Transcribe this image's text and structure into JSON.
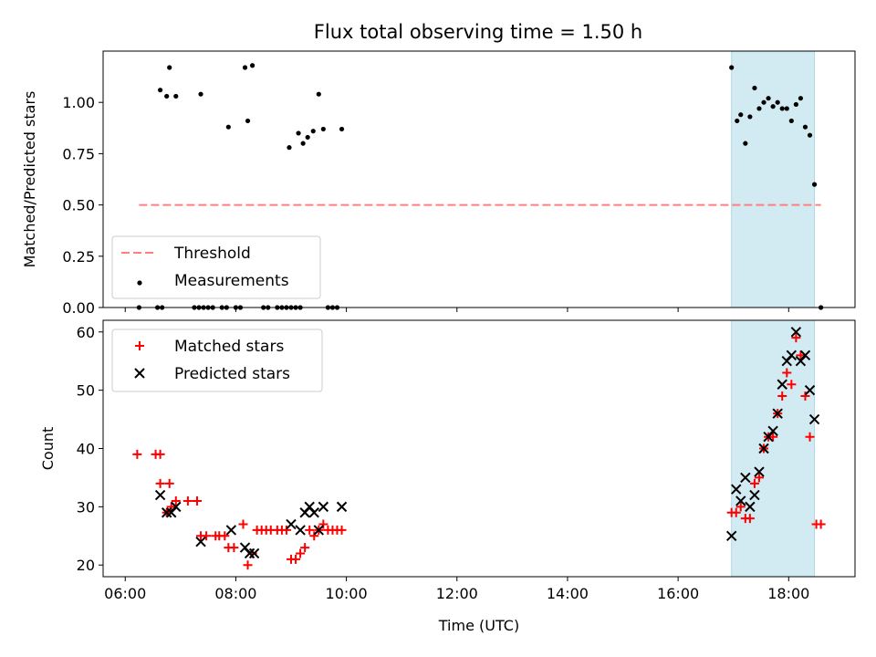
{
  "chart_data": [
    {
      "type": "scatter",
      "title": "Flux total observing time = 1.50 h",
      "xlabel": "",
      "ylabel": "Matched/Predicted stars",
      "ylim": [
        0,
        1.25
      ],
      "xlim_hours": [
        5.6,
        19.2
      ],
      "yticks": [
        "0.00",
        "0.25",
        "0.50",
        "0.75",
        "1.00"
      ],
      "shaded_interval": [
        "16:58",
        "18:28"
      ],
      "shade_color": "#add8e6",
      "legend": {
        "placement": "lower-left",
        "entries": [
          "Threshold",
          "Measurements"
        ]
      },
      "threshold": {
        "name": "Threshold",
        "value": 0.5,
        "x": [
          "06:15",
          "18:35"
        ],
        "color": "#ff7f7f",
        "style": "dashed"
      },
      "series": [
        {
          "name": "Measurements",
          "color": "#000000",
          "marker": "dot",
          "points": [
            [
              "06:15",
              0.0
            ],
            [
              "06:35",
              0.0
            ],
            [
              "06:40",
              0.0
            ],
            [
              "06:38",
              1.06
            ],
            [
              "06:45",
              1.03
            ],
            [
              "06:48",
              1.17
            ],
            [
              "06:55",
              1.03
            ],
            [
              "07:15",
              0.0
            ],
            [
              "07:20",
              0.0
            ],
            [
              "07:25",
              0.0
            ],
            [
              "07:22",
              1.04
            ],
            [
              "07:30",
              0.0
            ],
            [
              "07:35",
              0.0
            ],
            [
              "07:45",
              0.0
            ],
            [
              "07:50",
              0.0
            ],
            [
              "07:52",
              0.88
            ],
            [
              "08:00",
              0.0
            ],
            [
              "08:05",
              0.0
            ],
            [
              "08:10",
              1.17
            ],
            [
              "08:13",
              0.91
            ],
            [
              "08:18",
              1.18
            ],
            [
              "08:30",
              0.0
            ],
            [
              "08:35",
              0.0
            ],
            [
              "08:45",
              0.0
            ],
            [
              "08:50",
              0.0
            ],
            [
              "08:55",
              0.0
            ],
            [
              "09:00",
              0.0
            ],
            [
              "09:05",
              0.0
            ],
            [
              "09:10",
              0.0
            ],
            [
              "08:58",
              0.78
            ],
            [
              "09:08",
              0.85
            ],
            [
              "09:13",
              0.8
            ],
            [
              "09:18",
              0.83
            ],
            [
              "09:24",
              0.86
            ],
            [
              "09:30",
              1.04
            ],
            [
              "09:35",
              0.87
            ],
            [
              "09:40",
              0.0
            ],
            [
              "09:45",
              0.0
            ],
            [
              "09:50",
              0.0
            ],
            [
              "09:55",
              0.87
            ],
            [
              "16:58",
              1.17
            ],
            [
              "17:04",
              0.91
            ],
            [
              "17:08",
              0.94
            ],
            [
              "17:13",
              0.8
            ],
            [
              "17:18",
              0.93
            ],
            [
              "17:23",
              1.07
            ],
            [
              "17:28",
              0.97
            ],
            [
              "17:33",
              1.0
            ],
            [
              "17:38",
              1.02
            ],
            [
              "17:43",
              0.98
            ],
            [
              "17:48",
              1.0
            ],
            [
              "17:53",
              0.97
            ],
            [
              "17:58",
              0.97
            ],
            [
              "18:03",
              0.91
            ],
            [
              "18:08",
              0.99
            ],
            [
              "18:13",
              1.02
            ],
            [
              "18:18",
              0.88
            ],
            [
              "18:23",
              0.84
            ],
            [
              "18:28",
              0.6
            ],
            [
              "18:35",
              0.0
            ]
          ]
        }
      ]
    },
    {
      "type": "scatter",
      "title": "",
      "xlabel": "Time (UTC)",
      "ylabel": "Count",
      "ylim": [
        18,
        62
      ],
      "xlim_hours": [
        5.6,
        19.2
      ],
      "xticks": [
        "06:00",
        "08:00",
        "10:00",
        "12:00",
        "14:00",
        "16:00",
        "18:00"
      ],
      "yticks": [
        "20",
        "30",
        "40",
        "50",
        "60"
      ],
      "shaded_interval": [
        "16:58",
        "18:28"
      ],
      "shade_color": "#add8e6",
      "legend": {
        "placement": "top-left",
        "entries": [
          "Matched stars",
          "Predicted stars"
        ]
      },
      "series": [
        {
          "name": "Matched stars",
          "color": "#ff0000",
          "marker": "plus",
          "points": [
            [
              "06:13",
              39
            ],
            [
              "06:33",
              39
            ],
            [
              "06:38",
              39
            ],
            [
              "06:38",
              34
            ],
            [
              "06:48",
              34
            ],
            [
              "06:45",
              29
            ],
            [
              "06:50",
              30
            ],
            [
              "06:55",
              31
            ],
            [
              "07:08",
              31
            ],
            [
              "07:18",
              31
            ],
            [
              "07:22",
              25
            ],
            [
              "07:28",
              25
            ],
            [
              "07:38",
              25
            ],
            [
              "07:42",
              25
            ],
            [
              "07:48",
              25
            ],
            [
              "07:52",
              23
            ],
            [
              "07:58",
              23
            ],
            [
              "08:08",
              27
            ],
            [
              "08:13",
              20
            ],
            [
              "08:18",
              22
            ],
            [
              "08:23",
              26
            ],
            [
              "08:28",
              26
            ],
            [
              "08:33",
              26
            ],
            [
              "08:38",
              26
            ],
            [
              "08:45",
              26
            ],
            [
              "08:50",
              26
            ],
            [
              "08:55",
              26
            ],
            [
              "09:00",
              21
            ],
            [
              "09:05",
              21
            ],
            [
              "09:10",
              22
            ],
            [
              "09:15",
              23
            ],
            [
              "09:20",
              26
            ],
            [
              "09:25",
              25
            ],
            [
              "09:30",
              26
            ],
            [
              "09:35",
              27
            ],
            [
              "09:40",
              26
            ],
            [
              "09:45",
              26
            ],
            [
              "09:50",
              26
            ],
            [
              "09:55",
              26
            ],
            [
              "16:58",
              29
            ],
            [
              "17:03",
              29
            ],
            [
              "17:08",
              30
            ],
            [
              "17:13",
              28
            ],
            [
              "17:18",
              28
            ],
            [
              "17:23",
              34
            ],
            [
              "17:28",
              35
            ],
            [
              "17:33",
              40
            ],
            [
              "17:38",
              42
            ],
            [
              "17:43",
              42
            ],
            [
              "17:48",
              46
            ],
            [
              "17:53",
              49
            ],
            [
              "17:58",
              53
            ],
            [
              "18:03",
              51
            ],
            [
              "18:08",
              59
            ],
            [
              "18:13",
              56
            ],
            [
              "18:18",
              49
            ],
            [
              "18:23",
              42
            ],
            [
              "18:30",
              27
            ],
            [
              "18:35",
              27
            ]
          ]
        },
        {
          "name": "Predicted stars",
          "color": "#000000",
          "marker": "x",
          "points": [
            [
              "06:38",
              32
            ],
            [
              "06:45",
              29
            ],
            [
              "06:50",
              29
            ],
            [
              "06:55",
              30
            ],
            [
              "07:22",
              24
            ],
            [
              "07:55",
              26
            ],
            [
              "08:10",
              23
            ],
            [
              "08:15",
              22
            ],
            [
              "08:20",
              22
            ],
            [
              "09:00",
              27
            ],
            [
              "09:10",
              26
            ],
            [
              "09:15",
              29
            ],
            [
              "09:20",
              30
            ],
            [
              "09:25",
              29
            ],
            [
              "09:30",
              26
            ],
            [
              "09:35",
              30
            ],
            [
              "09:55",
              30
            ],
            [
              "16:58",
              25
            ],
            [
              "17:03",
              33
            ],
            [
              "17:08",
              31
            ],
            [
              "17:13",
              35
            ],
            [
              "17:18",
              30
            ],
            [
              "17:23",
              32
            ],
            [
              "17:28",
              36
            ],
            [
              "17:33",
              40
            ],
            [
              "17:38",
              42
            ],
            [
              "17:43",
              43
            ],
            [
              "17:48",
              46
            ],
            [
              "17:53",
              51
            ],
            [
              "17:58",
              55
            ],
            [
              "18:03",
              56
            ],
            [
              "18:08",
              60
            ],
            [
              "18:13",
              55
            ],
            [
              "18:18",
              56
            ],
            [
              "18:23",
              50
            ],
            [
              "18:28",
              45
            ]
          ]
        }
      ]
    }
  ]
}
